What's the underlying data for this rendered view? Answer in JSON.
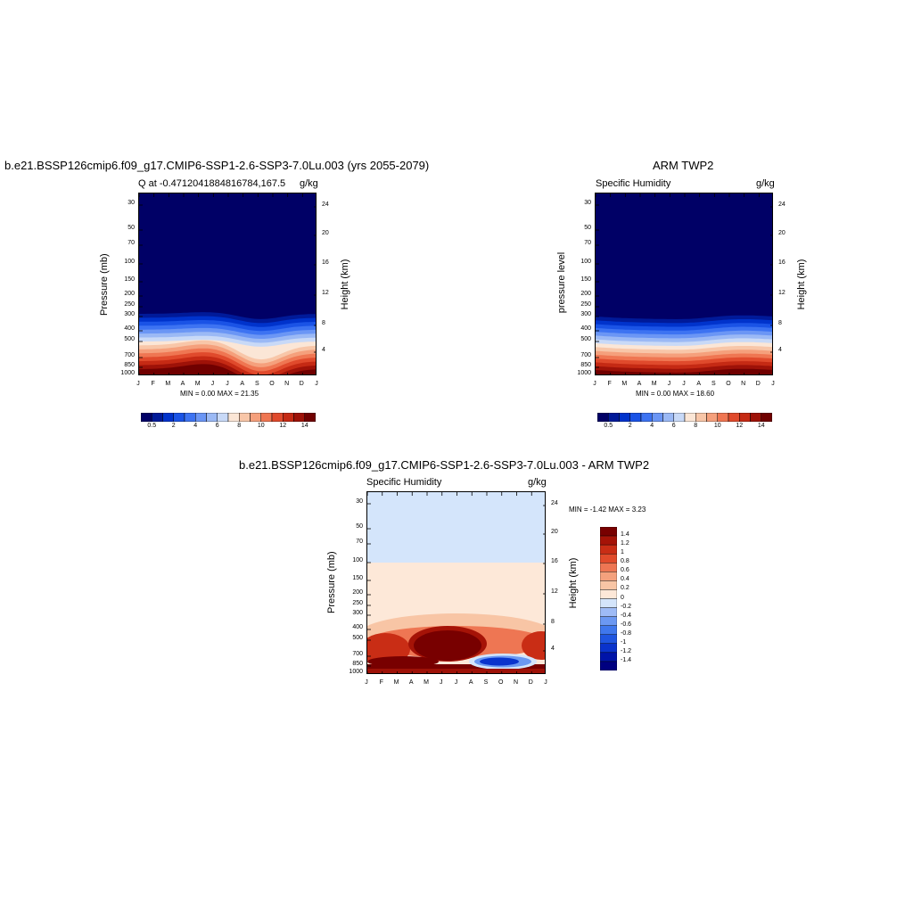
{
  "months": [
    "J",
    "F",
    "M",
    "A",
    "M",
    "J",
    "J",
    "A",
    "S",
    "O",
    "N",
    "D",
    "J"
  ],
  "pressure_ticks": [
    "30",
    "50",
    "70",
    "100",
    "150",
    "200",
    "250",
    "300",
    "400",
    "500",
    "700",
    "850",
    "1000"
  ],
  "height_ticks": [
    "24",
    "20",
    "16",
    "12",
    "8",
    "4"
  ],
  "colors": {
    "abs_palette": [
      "#000066",
      "#001a99",
      "#0033cc",
      "#1a53e6",
      "#3d73f2",
      "#6b96f5",
      "#9bb9f5",
      "#c8d9f7",
      "#fbe6d6",
      "#f8c6a8",
      "#f5a07c",
      "#ef7652",
      "#e04a2c",
      "#c52a14",
      "#9e1208",
      "#700000"
    ],
    "diff_palette": [
      "#000080",
      "#0014a8",
      "#0a33cc",
      "#1f55e0",
      "#3f77ec",
      "#6b98f2",
      "#9ebbf6",
      "#d4e5fb",
      "#fde8d8",
      "#f8c5a5",
      "#f4a17d",
      "#ee7653",
      "#e14b2b",
      "#c92d15",
      "#a51307",
      "#780000"
    ]
  },
  "chart_data": [
    {
      "type": "heatmap",
      "title": "b.e21.BSSP126cmip6.f09_g17.CMIP6-SSP1-2.6-SSP3-7.0Lu.003 (yrs 2055-2079)",
      "left_label": "Q at -0.4712041884816784,167.5",
      "right_label": "g/kg",
      "ylabel": "Pressure (mb)",
      "ylabel_right": "Height (km)",
      "minmax": "MIN =   0.00 MAX =  21.35",
      "colorbar_ticks": [
        "0.5",
        "2",
        "4",
        "6",
        "8",
        "10",
        "12",
        "14"
      ],
      "ylim": [
        1000,
        25
      ],
      "x": [
        "J",
        "F",
        "M",
        "A",
        "M",
        "J",
        "J",
        "A",
        "S",
        "O",
        "N",
        "D",
        "J"
      ]
    },
    {
      "type": "heatmap",
      "title": "ARM TWP2",
      "left_label": "Specific Humidity",
      "right_label": "g/kg",
      "ylabel": "pressure level",
      "ylabel_right": "Height (km)",
      "minmax": "MIN =   0.00 MAX =  18.60",
      "colorbar_ticks": [
        "0.5",
        "2",
        "4",
        "6",
        "8",
        "10",
        "12",
        "14"
      ],
      "ylim": [
        1000,
        25
      ],
      "x": [
        "J",
        "F",
        "M",
        "A",
        "M",
        "J",
        "J",
        "A",
        "S",
        "O",
        "N",
        "D",
        "J"
      ]
    },
    {
      "type": "heatmap",
      "title": "b.e21.BSSP126cmip6.f09_g17.CMIP6-SSP1-2.6-SSP3-7.0Lu.003 - ARM TWP2",
      "left_label": "Specific Humidity",
      "right_label": "g/kg",
      "ylabel": "Pressure (mb)",
      "ylabel_right": "Height (km)",
      "minmax": "MIN =  -1.42 MAX =   3.23",
      "colorbar_ticks": [
        "1.4",
        "1.2",
        "1",
        "0.8",
        "0.6",
        "0.4",
        "0.2",
        "0",
        "-0.2",
        "-0.4",
        "-0.6",
        "-0.8",
        "-1",
        "-1.2",
        "-1.4"
      ],
      "ylim": [
        1000,
        25
      ],
      "x": [
        "J",
        "F",
        "M",
        "A",
        "M",
        "J",
        "J",
        "A",
        "S",
        "O",
        "N",
        "D",
        "J"
      ]
    }
  ]
}
